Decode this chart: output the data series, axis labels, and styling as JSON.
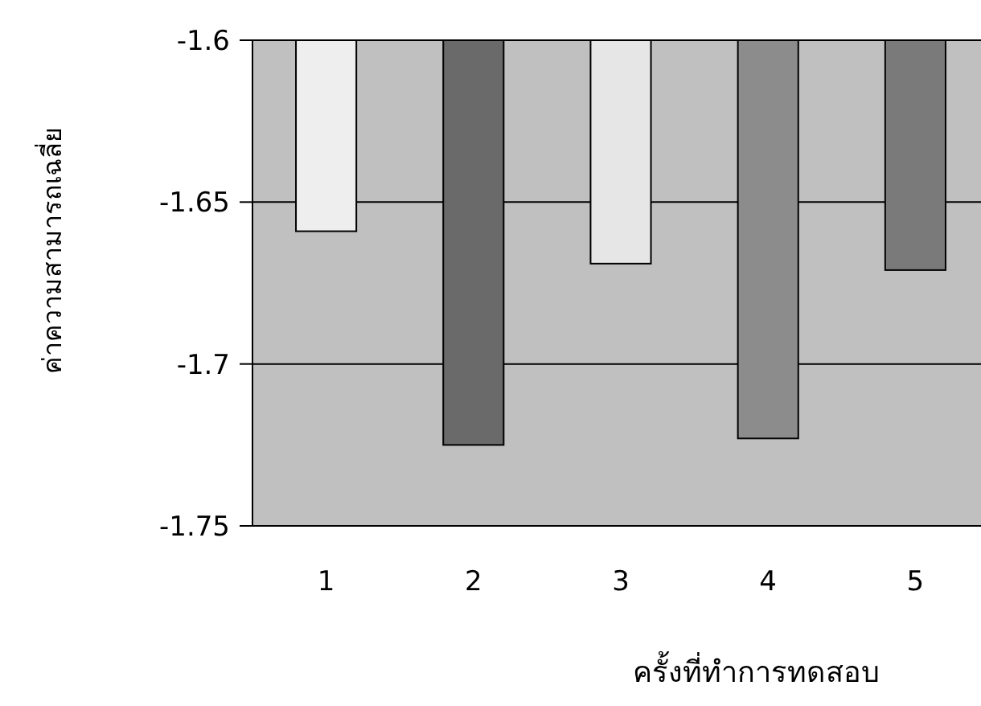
{
  "chart_data": {
    "type": "bar",
    "xlabel": "ครั้งที่ทำการทดสอบ",
    "ylabel": "ค่าความสามารถเฉลี่ย",
    "categories": [
      "1",
      "2",
      "3",
      "4",
      "5"
    ],
    "values": [
      -1.659,
      -1.725,
      -1.669,
      -1.723,
      -1.671
    ],
    "colors": [
      "#eeeeee",
      "#6a6a6a",
      "#e6e6e6",
      "#8c8c8c",
      "#7a7a7a"
    ],
    "ylim": [
      -1.75,
      -1.6
    ],
    "yticks": [
      -1.75,
      -1.7,
      -1.65,
      -1.6
    ],
    "grid": "y"
  }
}
